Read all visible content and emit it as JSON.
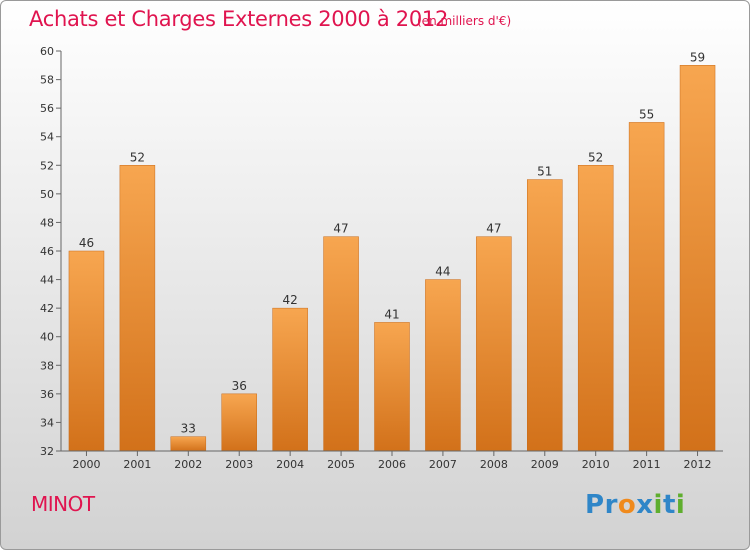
{
  "header": {
    "title": "Achats et Charges Externes 2000 à 2012",
    "unit": "(en milliers d'€)"
  },
  "footer": {
    "commune": "MINOT",
    "logo_text": "Proxiti",
    "logo_letters": [
      {
        "char": "P",
        "color": "#2f86c8"
      },
      {
        "char": "r",
        "color": "#2f86c8"
      },
      {
        "char": "o",
        "color": "#f08a1c"
      },
      {
        "char": "x",
        "color": "#2f86c8"
      },
      {
        "char": "i",
        "color": "#5fae2e"
      },
      {
        "char": "t",
        "color": "#2f86c8"
      },
      {
        "char": "i",
        "color": "#5fae2e"
      }
    ]
  },
  "colors": {
    "title": "#e0144f",
    "bar_light": "#f7a650",
    "bar_dark": "#d2711a",
    "axis": "#666666",
    "text": "#333333"
  },
  "chart_data": {
    "type": "bar",
    "title": "Achats et Charges Externes 2000 à 2012",
    "subtitle": "(en milliers d'€)",
    "xlabel": "",
    "ylabel": "",
    "categories": [
      "2000",
      "2001",
      "2002",
      "2003",
      "2004",
      "2005",
      "2006",
      "2007",
      "2008",
      "2009",
      "2010",
      "2011",
      "2012"
    ],
    "values": [
      46,
      52,
      33,
      36,
      42,
      47,
      41,
      44,
      47,
      51,
      52,
      55,
      59
    ],
    "ylim": [
      32,
      60
    ],
    "yticks": [
      32,
      34,
      36,
      38,
      40,
      42,
      44,
      46,
      48,
      50,
      52,
      54,
      56,
      58,
      60
    ],
    "grid": false,
    "legend": "none",
    "data_labels": true
  }
}
